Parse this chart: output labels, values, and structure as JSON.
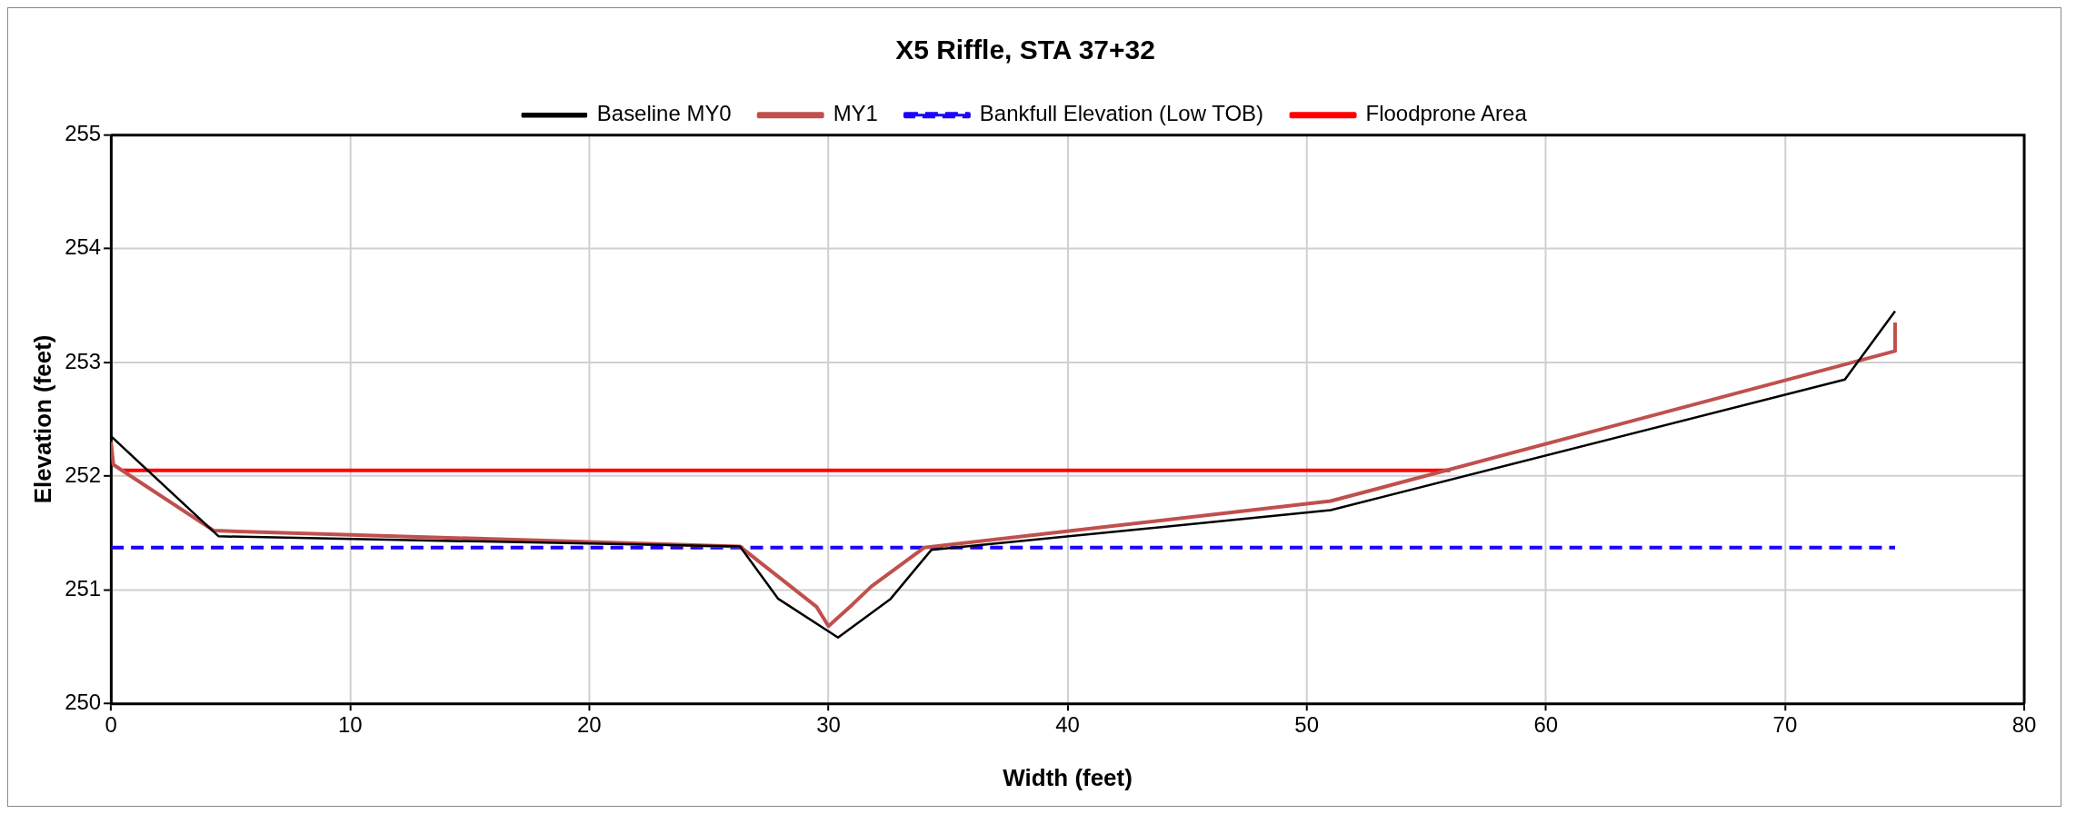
{
  "chart_data": {
    "type": "line",
    "title": "X5 Riffle, STA 37+32",
    "xlabel": "Width (feet)",
    "ylabel": "Elevation (feet)",
    "xlim": [
      0,
      80
    ],
    "xticks": [
      0,
      10,
      20,
      30,
      40,
      50,
      60,
      70,
      80
    ],
    "ylim": [
      250,
      255
    ],
    "yticks": [
      250,
      251,
      252,
      253,
      254,
      255
    ],
    "grid": true,
    "legend": "top",
    "marker": "none",
    "series": [
      {
        "name": "Baseline MY0",
        "color": "#000000",
        "line_style": "solid",
        "x": [
          0,
          4.5,
          26.3,
          27.9,
          30.4,
          32.6,
          34.3,
          51,
          72.5,
          74.6
        ],
        "values": [
          252.35,
          251.47,
          251.38,
          250.92,
          250.58,
          250.92,
          251.35,
          251.7,
          252.85,
          253.45
        ]
      },
      {
        "name": "MY1",
        "color": "#c0504d",
        "line_style": "solid",
        "x": [
          0,
          0.1,
          4.3,
          26.3,
          29.5,
          30,
          31,
          31.8,
          34,
          51,
          74.6,
          74.6
        ],
        "values": [
          252.3,
          252.1,
          251.52,
          251.38,
          250.85,
          250.68,
          250.87,
          251.03,
          251.37,
          251.78,
          253.1,
          253.35
        ]
      },
      {
        "name": "Bankfull Elevation (Low TOB)",
        "color": "#1a00ff",
        "line_style": "dashed",
        "x": [
          0,
          74.6
        ],
        "values": [
          251.37,
          251.37
        ]
      },
      {
        "name": "Floodprone Area",
        "color": "#ff0000",
        "line_style": "solid",
        "x": [
          0.5,
          56
        ],
        "values": [
          252.05,
          252.05
        ]
      }
    ]
  }
}
